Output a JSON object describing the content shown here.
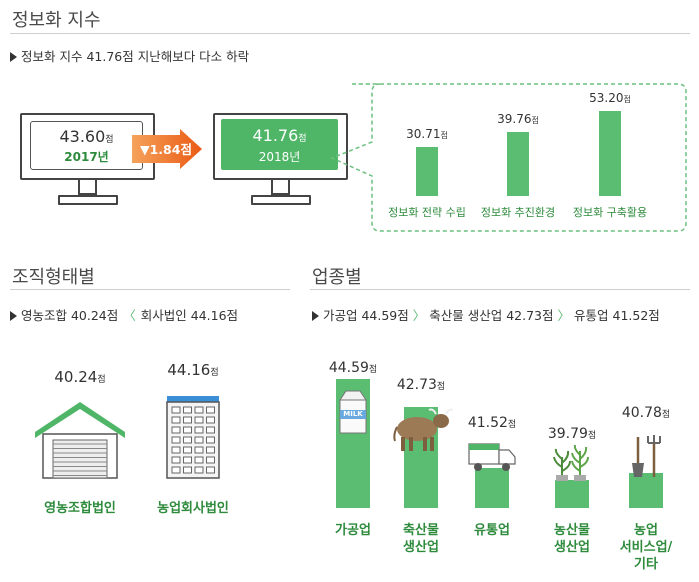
{
  "sections": {
    "index": {
      "title": "정보화 지수",
      "subtitle": "정보화 지수 41.76점 지난해보다 다소 하락",
      "y2017": {
        "value": "43.60",
        "unit": "점",
        "year": "2017년"
      },
      "y2018": {
        "value": "41.76",
        "unit": "점",
        "year": "2018년"
      },
      "change": "▼1.84점"
    },
    "org": {
      "title": "조직형태별",
      "subtitle_parts": [
        "영농조합 40.24점",
        "회사법인 44.16점"
      ],
      "sep": "〈"
    },
    "industry": {
      "title": "업종별",
      "subtitle_parts": [
        "가공업 44.59점",
        "축산물 생산업 42.73점",
        "유통업 41.52점"
      ],
      "sep": "〉"
    }
  },
  "chart_data": [
    {
      "type": "bar",
      "categories": [
        "정보화 전략 수립",
        "정보화 추진환경",
        "정보화 구축활용"
      ],
      "values": [
        30.71,
        39.76,
        53.2
      ],
      "value_labels": [
        "30.71",
        "39.76",
        "53.20"
      ],
      "unit": "점",
      "color": "#5bbd72"
    },
    {
      "type": "bar",
      "categories": [
        "영농조합법인",
        "농업회사법인"
      ],
      "values": [
        40.24,
        44.16
      ],
      "value_labels": [
        "40.24",
        "44.16"
      ],
      "unit": "점"
    },
    {
      "type": "bar",
      "categories": [
        [
          "가공업"
        ],
        [
          "축산물",
          "생산업"
        ],
        [
          "유통업"
        ],
        [
          "농산물",
          "생산업"
        ],
        [
          "농업",
          "서비스업/",
          "기타"
        ]
      ],
      "values": [
        44.59,
        42.73,
        41.52,
        39.79,
        40.78
      ],
      "value_labels": [
        "44.59",
        "42.73",
        "41.52",
        "39.79",
        "40.78"
      ],
      "unit": "점",
      "color": "#5bbd72"
    }
  ],
  "icons": {
    "milk_label": "MILK"
  },
  "colors": {
    "accent_green": "#5bbd72",
    "arrow_orange": "#f07a2a",
    "label_green": "#2e8b3c"
  }
}
